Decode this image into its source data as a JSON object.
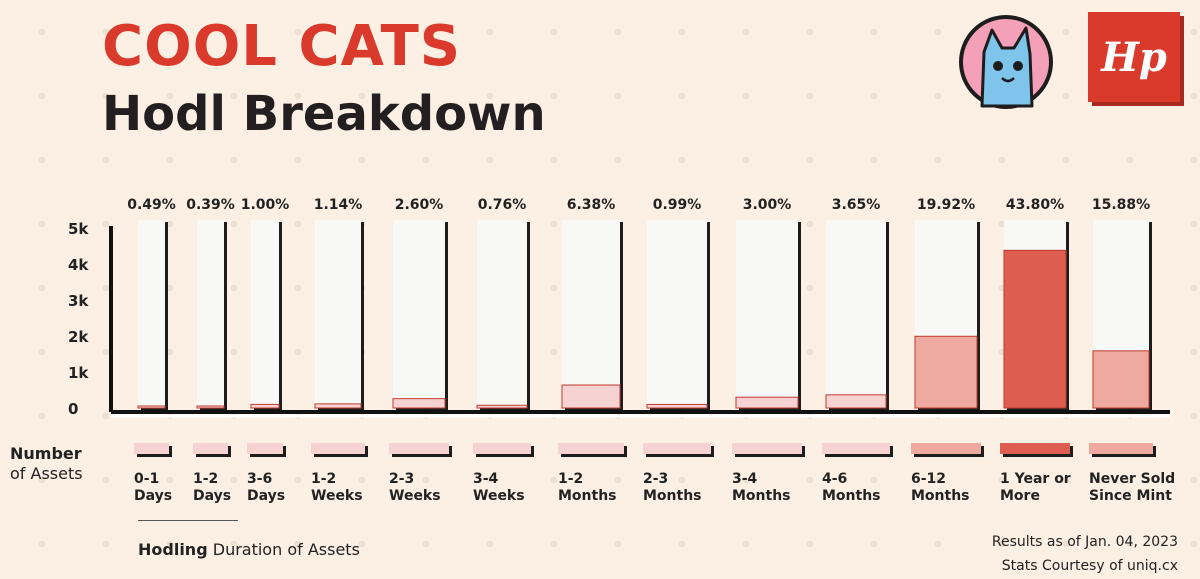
{
  "header": {
    "title": "COOL CATS",
    "subtitle": "Hodl Breakdown",
    "publisher_logo": "Hp"
  },
  "legend": {
    "ylabel_line1": "Number",
    "ylabel_line2": "of Assets"
  },
  "footer": {
    "xlabel_bold": "Hodling",
    "xlabel_rest": " Duration of Assets",
    "date_note": "Results as of Jan. 04, 2023",
    "source_note": "Stats Courtesy of uniq.cx"
  },
  "colors": {
    "title": "#d93a2b",
    "bar_light": "#f7d2d2",
    "bar_mid": "#efaaa0",
    "bar_dark": "#de5d51",
    "bar_border": "#c03a2e",
    "bar_bg": "#f8f8f6"
  },
  "chart_data": {
    "type": "bar",
    "title": "Hodl Breakdown",
    "ylabel": "Number of Assets",
    "xlabel": "Hodling Duration of Assets",
    "ylim": [
      0,
      5000
    ],
    "yticks": [
      {
        "value": 0,
        "label": "0"
      },
      {
        "value": 1000,
        "label": "1k"
      },
      {
        "value": 2000,
        "label": "2k"
      },
      {
        "value": 3000,
        "label": "3k"
      },
      {
        "value": 4000,
        "label": "4k"
      },
      {
        "value": 5000,
        "label": "5k"
      }
    ],
    "categories": [
      [
        "0-1",
        "Days"
      ],
      [
        "1-2",
        "Days"
      ],
      [
        "3-6",
        "Days"
      ],
      [
        "1-2",
        "Weeks"
      ],
      [
        "2-3",
        "Weeks"
      ],
      [
        "3-4",
        "Weeks"
      ],
      [
        "1-2",
        "Months"
      ],
      [
        "2-3",
        "Months"
      ],
      [
        "3-4",
        "Months"
      ],
      [
        "4-6",
        "Months"
      ],
      [
        "6-12",
        "Months"
      ],
      [
        "1 Year or",
        "More"
      ],
      [
        "Never Sold",
        "Since Mint"
      ]
    ],
    "percent_labels": [
      "0.49%",
      "0.39%",
      "1.00%",
      "1.14%",
      "2.60%",
      "0.76%",
      "6.38%",
      "0.99%",
      "3.00%",
      "3.65%",
      "19.92%",
      "43.80%",
      "15.88%"
    ],
    "values": [
      49,
      39,
      100,
      114,
      260,
      76,
      638,
      99,
      300,
      365,
      1992,
      4380,
      1588
    ]
  }
}
